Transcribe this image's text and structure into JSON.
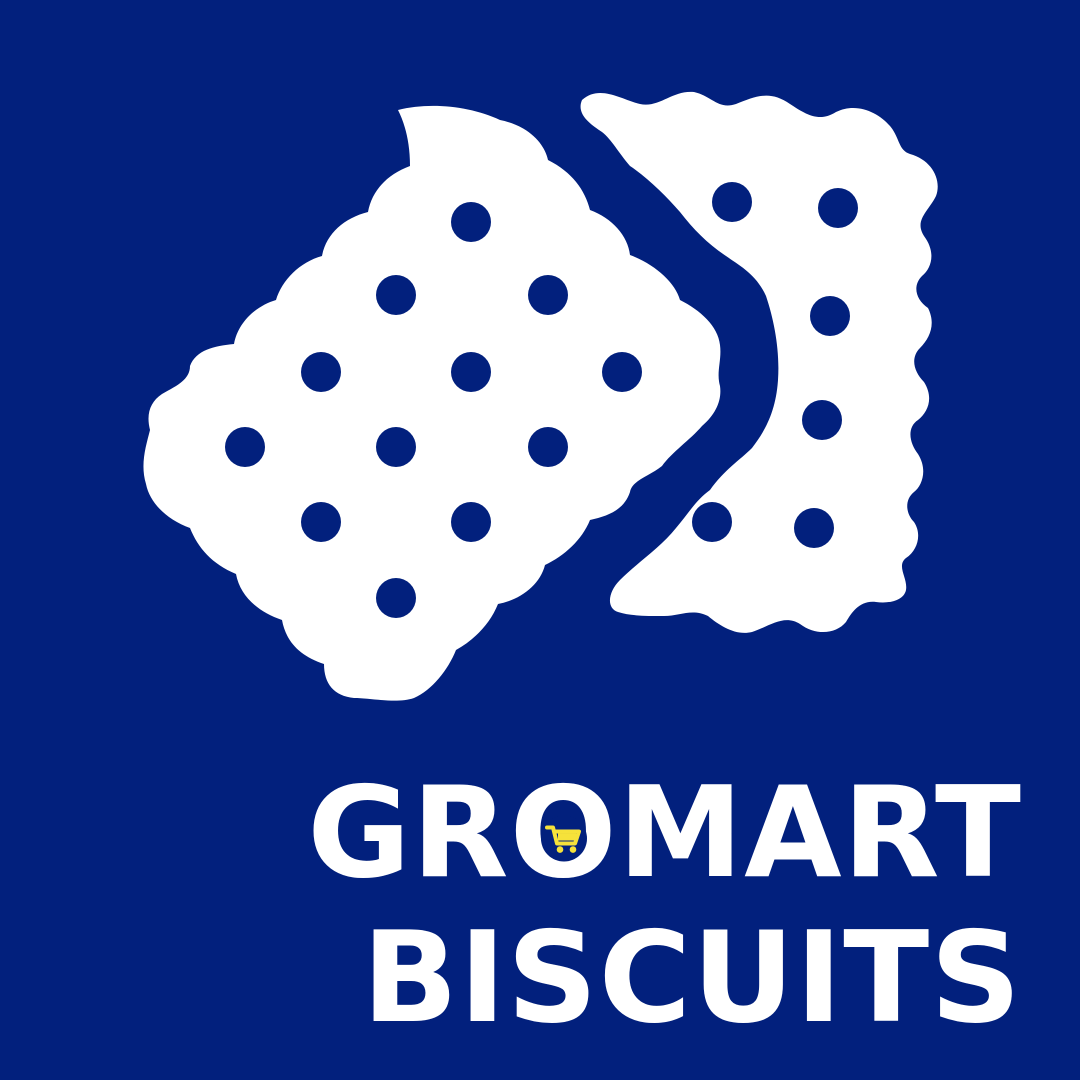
{
  "brand": {
    "line1": {
      "before_o": "GR",
      "o": "O",
      "after_o": "MART"
    },
    "line2": "BISCUITS",
    "cart_icon": "shopping-cart-icon"
  },
  "colors": {
    "background": "#02207d",
    "foreground": "#ffffff",
    "cart_accent": "#f6e23a"
  }
}
